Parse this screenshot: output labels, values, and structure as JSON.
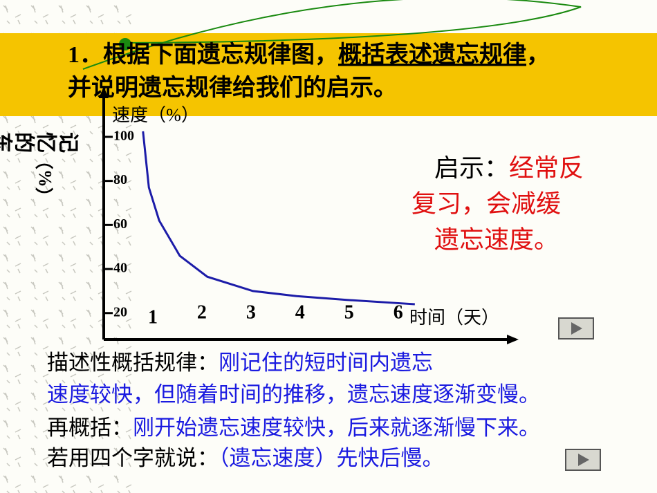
{
  "header": {
    "line1_a": "1．根据下面遗忘规律图，",
    "line1_b": "概括表述",
    "line1_c": "遗忘规律",
    "line1_d": "，",
    "line2": "并说明遗忘规律给我们的启示。"
  },
  "insight": {
    "label": "启示：",
    "text1": "经常反",
    "text2": "复习，会减缓",
    "text3": "遗忘速度。"
  },
  "summary": {
    "label1": "描述性概括规律：",
    "text1a": "刚记住的短时间内遗忘",
    "text1b": "速度较快，但随着时间的推移，遗忘速度逐渐变慢。",
    "label2": "再概括：",
    "text2": "刚开始遗忘速度较快，后来就逐渐慢下来。",
    "label3": "若用四个字就说：",
    "text3": "（遗忘速度）先快后慢。"
  },
  "chart_data": {
    "type": "line",
    "y_title": "速度（%）",
    "ylabel": "记忆的东西",
    "ylabel_unit": "（%）",
    "xlabel": "时间（天）",
    "x": [
      0.8,
      0.92,
      1.13,
      1.55,
      2.11,
      3.04,
      3.93,
      4.93,
      6.0,
      6.34
    ],
    "values": [
      102.5,
      77,
      62,
      46,
      36.5,
      30,
      27.7,
      26,
      24.5,
      24
    ],
    "color": "#1c1ca8",
    "xlim": [
      0,
      8.4
    ],
    "xticks": [
      1,
      2,
      3,
      4,
      5,
      6
    ],
    "ylim": [
      8,
      105
    ],
    "yticks": [
      100,
      80,
      60,
      40,
      20
    ]
  }
}
